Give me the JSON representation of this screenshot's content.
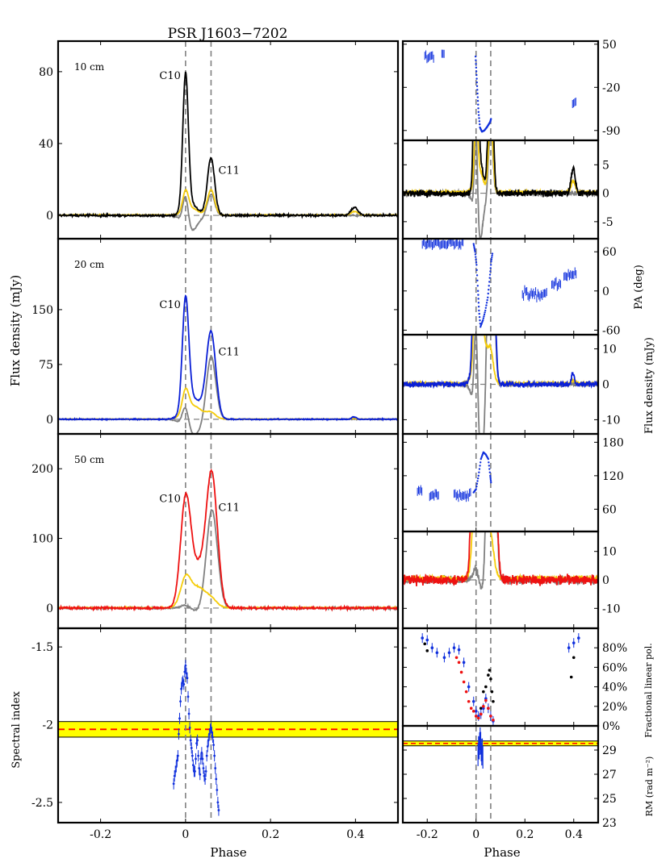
{
  "title": "PSR J1603−7202",
  "x_label": "Phase",
  "ylabels": {
    "flux_left": "Flux density (mJy)",
    "pa": "PA (deg)",
    "flux_right": "Flux density (mJy)",
    "spectral_index": "Spectral index",
    "frac_pol": "Fractional linear pol.",
    "rm": "RM (rad m⁻²)"
  },
  "colors": {
    "total_10": "#000000",
    "total_20": "#0a1fd6",
    "total_50": "#ee1111",
    "linear": "#f5cc0a",
    "circular": "#808080",
    "pa_points": "#1030dd",
    "band_fill": "#ffff00",
    "fit_line": "#ff0000",
    "guide": "#808080"
  },
  "chart_data": [
    {
      "id": "profile_10cm",
      "type": "line",
      "band_label": "10 cm",
      "components": [
        {
          "label": "C10",
          "x": 0.0
        },
        {
          "label": "C11",
          "x": 0.06
        }
      ],
      "xlim": [
        -0.3,
        0.5
      ],
      "ylim": [
        -13,
        97
      ],
      "yticks": [
        {
          "v": 0,
          "label": "0"
        },
        {
          "v": 40,
          "label": "40"
        },
        {
          "v": 80,
          "label": "80"
        }
      ],
      "peaks": [
        {
          "c": 0.0,
          "w": 0.0065,
          "I": 75,
          "L": 11,
          "V": 17
        },
        {
          "c": 0.012,
          "w": 0.016,
          "I": 6,
          "L": 4,
          "V": -9
        },
        {
          "c": 0.06,
          "w": 0.0085,
          "I": 32,
          "L": 14,
          "V": 12
        },
        {
          "c": 0.398,
          "w": 0.008,
          "I": 4.5,
          "L": 2,
          "V": 0
        }
      ],
      "noise": 0.6
    },
    {
      "id": "profile_20cm",
      "type": "line",
      "band_label": "20 cm",
      "components": [
        {
          "label": "C10",
          "x": 0.0
        },
        {
          "label": "C11",
          "x": 0.06
        }
      ],
      "xlim": [
        -0.3,
        0.5
      ],
      "ylim": [
        -20,
        247
      ],
      "yticks": [
        {
          "v": 0,
          "label": "0"
        },
        {
          "v": 75,
          "label": "75"
        },
        {
          "v": 150,
          "label": "150"
        }
      ],
      "peaks": [
        {
          "c": 0.0,
          "w": 0.0075,
          "I": 150,
          "L": 30,
          "V": 30
        },
        {
          "c": 0.018,
          "w": 0.02,
          "I": 28,
          "L": 18,
          "V": -22
        },
        {
          "c": 0.06,
          "w": 0.011,
          "I": 118,
          "L": 8,
          "V": 88
        },
        {
          "c": 0.396,
          "w": 0.006,
          "I": 3,
          "L": 1,
          "V": 0
        }
      ],
      "noise": 0.8
    },
    {
      "id": "profile_50cm",
      "type": "line",
      "band_label": "50 cm",
      "components": [
        {
          "label": "C10",
          "x": 0.0
        },
        {
          "label": "C11",
          "x": 0.06
        }
      ],
      "xlim": [
        -0.3,
        0.5
      ],
      "ylim": [
        -29,
        250
      ],
      "yticks": [
        {
          "v": 0,
          "label": "0"
        },
        {
          "v": 100,
          "label": "100"
        },
        {
          "v": 200,
          "label": "200"
        }
      ],
      "peaks": [
        {
          "c": 0.0,
          "w": 0.012,
          "I": 150,
          "L": 40,
          "V": 5
        },
        {
          "c": 0.03,
          "w": 0.018,
          "I": 55,
          "L": 28,
          "V": -5
        },
        {
          "c": 0.062,
          "w": 0.013,
          "I": 185,
          "L": 10,
          "V": 142
        }
      ],
      "noise": 1.8
    },
    {
      "id": "spectral_index",
      "type": "scatter",
      "xlim": [
        -0.3,
        0.5
      ],
      "ylim": [
        -2.63,
        -1.38
      ],
      "yticks": [
        {
          "v": -1.5,
          "label": "-1.5"
        },
        {
          "v": -2.0,
          "label": "-2"
        },
        {
          "v": -2.5,
          "label": "-2.5"
        }
      ],
      "mean": -2.03,
      "band": [
        -2.08,
        -1.98
      ],
      "points": [
        [
          -0.028,
          -2.38
        ],
        [
          -0.026,
          -2.33
        ],
        [
          -0.024,
          -2.3
        ],
        [
          -0.022,
          -2.27
        ],
        [
          -0.02,
          -2.23
        ],
        [
          -0.018,
          -2.2
        ],
        [
          -0.016,
          -2.06
        ],
        [
          -0.014,
          -1.96
        ],
        [
          -0.012,
          -1.85
        ],
        [
          -0.01,
          -1.77
        ],
        [
          -0.008,
          -1.73
        ],
        [
          -0.006,
          -1.72
        ],
        [
          -0.004,
          -1.74
        ],
        [
          -0.002,
          -1.66
        ],
        [
          0.0,
          -1.62
        ],
        [
          0.002,
          -1.67
        ],
        [
          0.004,
          -1.7
        ],
        [
          0.006,
          -1.82
        ],
        [
          0.008,
          -1.93
        ],
        [
          0.01,
          -2.02
        ],
        [
          0.012,
          -2.1
        ],
        [
          0.014,
          -2.15
        ],
        [
          0.016,
          -2.2
        ],
        [
          0.018,
          -2.26
        ],
        [
          0.02,
          -2.3
        ],
        [
          0.022,
          -2.3
        ],
        [
          0.024,
          -2.22
        ],
        [
          0.026,
          -2.12
        ],
        [
          0.028,
          -2.1
        ],
        [
          0.03,
          -2.2
        ],
        [
          0.032,
          -2.28
        ],
        [
          0.034,
          -2.32
        ],
        [
          0.036,
          -2.22
        ],
        [
          0.038,
          -2.18
        ],
        [
          0.04,
          -2.22
        ],
        [
          0.042,
          -2.28
        ],
        [
          0.044,
          -2.33
        ],
        [
          0.046,
          -2.35
        ],
        [
          0.048,
          -2.3
        ],
        [
          0.05,
          -2.2
        ],
        [
          0.052,
          -2.14
        ],
        [
          0.054,
          -2.1
        ],
        [
          0.056,
          -2.06
        ],
        [
          0.058,
          -2.03
        ],
        [
          0.06,
          -2.02
        ],
        [
          0.062,
          -2.05
        ],
        [
          0.064,
          -2.08
        ],
        [
          0.066,
          -2.13
        ],
        [
          0.068,
          -2.2
        ],
        [
          0.07,
          -2.28
        ],
        [
          0.072,
          -2.35
        ],
        [
          0.074,
          -2.42
        ],
        [
          0.076,
          -2.5
        ],
        [
          0.078,
          -2.55
        ]
      ]
    },
    {
      "id": "pa_10cm",
      "type": "scatter",
      "ylim": [
        -106,
        55
      ],
      "yticks": [
        {
          "v": 50,
          "label": "50"
        },
        {
          "v": -20,
          "label": "-20"
        },
        {
          "v": -90,
          "label": "-90"
        }
      ],
      "groups": [
        {
          "x0": -0.21,
          "x1": -0.17,
          "y": 30,
          "sp": 7
        },
        {
          "x0": -0.14,
          "x1": -0.13,
          "y": 35,
          "sp": 3
        },
        {
          "x0": 0.395,
          "x1": 0.41,
          "y": -45,
          "sp": 4
        }
      ],
      "curve": [
        [
          -0.002,
          30
        ],
        [
          0.002,
          0
        ],
        [
          0.006,
          -30
        ],
        [
          0.01,
          -60
        ],
        [
          0.016,
          -85
        ],
        [
          0.024,
          -92
        ],
        [
          0.034,
          -90
        ],
        [
          0.044,
          -85
        ],
        [
          0.052,
          -80
        ],
        [
          0.058,
          -76
        ],
        [
          0.062,
          -70
        ]
      ]
    },
    {
      "id": "flux_zoom_10cm",
      "type": "line",
      "source": "profile_10cm",
      "ylim": [
        -8,
        9.3
      ],
      "yticks": [
        {
          "v": 5,
          "label": "5"
        },
        {
          "v": 0,
          "label": "0"
        },
        {
          "v": -5,
          "label": "-5"
        }
      ]
    },
    {
      "id": "pa_20cm",
      "type": "scatter",
      "ylim": [
        -67,
        80
      ],
      "yticks": [
        {
          "v": 60,
          "label": "60"
        },
        {
          "v": 0,
          "label": "0"
        },
        {
          "v": -60,
          "label": "-60"
        }
      ],
      "groups": [
        {
          "x0": -0.22,
          "x1": -0.05,
          "y": 73,
          "sp": 5
        },
        {
          "x0": 0.19,
          "x1": 0.29,
          "y": -5,
          "sp": 8
        },
        {
          "x0": 0.31,
          "x1": 0.35,
          "y": 10,
          "sp": 6
        },
        {
          "x0": 0.36,
          "x1": 0.41,
          "y": 25,
          "sp": 6
        }
      ],
      "curve": [
        [
          -0.01,
          72
        ],
        [
          -0.004,
          60
        ],
        [
          0.002,
          40
        ],
        [
          0.008,
          0
        ],
        [
          0.012,
          -30
        ],
        [
          0.018,
          -55
        ],
        [
          0.028,
          -45
        ],
        [
          0.038,
          -30
        ],
        [
          0.048,
          -10
        ],
        [
          0.056,
          20
        ],
        [
          0.062,
          45
        ],
        [
          0.068,
          60
        ]
      ]
    },
    {
      "id": "flux_zoom_20cm",
      "type": "line",
      "source": "profile_20cm",
      "ylim": [
        -14,
        14
      ],
      "yticks": [
        {
          "v": 10,
          "label": "10"
        },
        {
          "v": 0,
          "label": "0"
        },
        {
          "v": -10,
          "label": "-10"
        }
      ]
    },
    {
      "id": "pa_50cm",
      "type": "scatter",
      "ylim": [
        20,
        195
      ],
      "yticks": [
        {
          "v": 180,
          "label": "180"
        },
        {
          "v": 120,
          "label": "120"
        },
        {
          "v": 60,
          "label": "60"
        }
      ],
      "groups": [
        {
          "x0": -0.24,
          "x1": -0.22,
          "y": 93,
          "sp": 4
        },
        {
          "x0": -0.19,
          "x1": -0.15,
          "y": 85,
          "sp": 5
        },
        {
          "x0": -0.09,
          "x1": -0.02,
          "y": 85,
          "sp": 8
        }
      ],
      "curve": [
        [
          -0.01,
          90
        ],
        [
          0.0,
          96
        ],
        [
          0.01,
          120
        ],
        [
          0.02,
          150
        ],
        [
          0.03,
          162
        ],
        [
          0.04,
          158
        ],
        [
          0.05,
          150
        ],
        [
          0.058,
          120
        ],
        [
          0.062,
          105
        ]
      ]
    },
    {
      "id": "flux_zoom_50cm",
      "type": "line",
      "source": "profile_50cm",
      "ylim": [
        -17,
        17
      ],
      "yticks": [
        {
          "v": 10,
          "label": "10"
        },
        {
          "v": 0,
          "label": "0"
        },
        {
          "v": -10,
          "label": "-10"
        }
      ]
    },
    {
      "id": "fractional_pol",
      "type": "scatter",
      "ylim": [
        0,
        100
      ],
      "yticks": [
        {
          "v": 80,
          "label": "80%"
        },
        {
          "v": 60,
          "label": "60%"
        },
        {
          "v": 40,
          "label": "40%"
        },
        {
          "v": 20,
          "label": "20%"
        },
        {
          "v": 0,
          "label": "0%"
        }
      ],
      "series": [
        {
          "name": "10 cm",
          "color": "#000000",
          "points": [
            [
              -0.21,
              84
            ],
            [
              -0.2,
              77
            ],
            [
              0.02,
              18
            ],
            [
              0.03,
              35
            ],
            [
              0.04,
              40
            ],
            [
              0.05,
              52
            ],
            [
              0.055,
              57
            ],
            [
              0.06,
              48
            ],
            [
              0.065,
              35
            ],
            [
              0.07,
              25
            ],
            [
              0.39,
              50
            ],
            [
              0.4,
              70
            ]
          ]
        },
        {
          "name": "20 cm",
          "color": "#1030dd",
          "points": [
            [
              -0.22,
              90
            ],
            [
              -0.2,
              88
            ],
            [
              -0.18,
              80
            ],
            [
              -0.16,
              75
            ],
            [
              -0.13,
              70
            ],
            [
              -0.11,
              75
            ],
            [
              -0.09,
              80
            ],
            [
              -0.07,
              78
            ],
            [
              -0.05,
              65
            ],
            [
              -0.03,
              40
            ],
            [
              -0.01,
              25
            ],
            [
              0.0,
              15
            ],
            [
              0.01,
              10
            ],
            [
              0.02,
              12
            ],
            [
              0.03,
              18
            ],
            [
              0.04,
              28
            ],
            [
              0.05,
              18
            ],
            [
              0.06,
              10
            ],
            [
              0.07,
              5
            ],
            [
              0.38,
              80
            ],
            [
              0.4,
              85
            ],
            [
              0.42,
              90
            ]
          ]
        },
        {
          "name": "50 cm",
          "color": "#ee1111",
          "points": [
            [
              -0.08,
              70
            ],
            [
              -0.07,
              65
            ],
            [
              -0.06,
              55
            ],
            [
              -0.05,
              45
            ],
            [
              -0.04,
              35
            ],
            [
              -0.03,
              25
            ],
            [
              -0.02,
              18
            ],
            [
              -0.01,
              15
            ],
            [
              0.0,
              10
            ],
            [
              0.01,
              8
            ],
            [
              0.02,
              12
            ],
            [
              0.03,
              20
            ],
            [
              0.04,
              26
            ],
            [
              0.05,
              18
            ],
            [
              0.06,
              10
            ],
            [
              0.07,
              6
            ]
          ]
        }
      ]
    },
    {
      "id": "rotation_measure",
      "type": "scatter",
      "ylim": [
        23,
        31
      ],
      "yticks": [
        {
          "v": 29,
          "label": "29"
        },
        {
          "v": 27,
          "label": "27"
        },
        {
          "v": 25,
          "label": "25"
        },
        {
          "v": 23,
          "label": "23"
        }
      ],
      "mean": 29.55,
      "band": [
        29.35,
        29.75
      ]
    }
  ],
  "x_ticks": [
    {
      "v": -0.2,
      "label": "-0.2"
    },
    {
      "v": 0.0,
      "label": "0"
    },
    {
      "v": 0.2,
      "label": "0.2"
    },
    {
      "v": 0.4,
      "label": "0.4"
    }
  ]
}
